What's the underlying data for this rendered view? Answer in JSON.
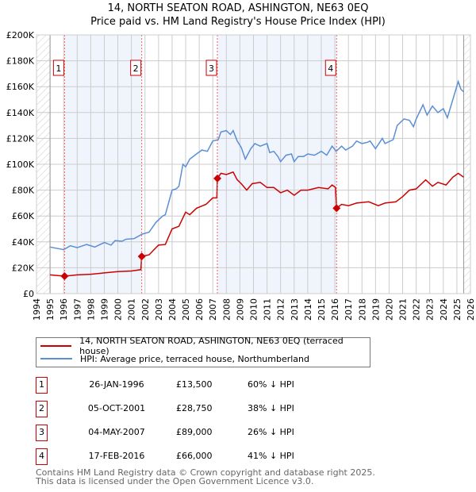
{
  "title": "14, NORTH SEATON ROAD, ASHINGTON, NE63 0EQ",
  "subtitle": "Price paid vs. HM Land Registry's House Price Index (HPI)",
  "chart_data": {
    "type": "line",
    "title": "14, NORTH SEATON ROAD, ASHINGTON, NE63 0EQ — Price paid vs. HM Land Registry's House Price Index (HPI)",
    "xlabel": "",
    "ylabel": "",
    "xlim": [
      1994,
      2026
    ],
    "ylim": [
      0,
      200000
    ],
    "x_ticks": [
      "1994",
      "1995",
      "1996",
      "1997",
      "1998",
      "1999",
      "2000",
      "2001",
      "2002",
      "2003",
      "2004",
      "2005",
      "2006",
      "2007",
      "2008",
      "2009",
      "2010",
      "2011",
      "2012",
      "2013",
      "2014",
      "2015",
      "2016",
      "2017",
      "2018",
      "2019",
      "2020",
      "2021",
      "2022",
      "2023",
      "2024",
      "2025",
      "2026"
    ],
    "y_ticks": [
      "£0",
      "£20K",
      "£40K",
      "£60K",
      "£80K",
      "£100K",
      "£120K",
      "£140K",
      "£160K",
      "£180K",
      "£200K"
    ],
    "grid": true,
    "legend_placement": "below",
    "series": [
      {
        "name": "14, NORTH SEATON ROAD, ASHINGTON, NE63 0EQ (terraced house)",
        "color": "#cc0000",
        "x": [
          1995,
          1996.07,
          1997,
          1998,
          1999,
          2000,
          2001,
          2001.7,
          2001.76,
          2002.3,
          2003,
          2003.5,
          2004,
          2004.5,
          2005,
          2005.3,
          2005.8,
          2006.5,
          2007,
          2007.3,
          2007.34,
          2007.6,
          2008,
          2008.5,
          2008.8,
          2009.1,
          2009.5,
          2009.9,
          2010.5,
          2011,
          2011.5,
          2012,
          2012.5,
          2013,
          2013.5,
          2014,
          2014.8,
          2015.5,
          2015.8,
          2016.05,
          2016.13,
          2016.5,
          2017,
          2017.6,
          2018.5,
          2019.2,
          2019.7,
          2020.5,
          2021,
          2021.5,
          2022,
          2022.7,
          2023.2,
          2023.6,
          2024.2,
          2024.7,
          2025.1,
          2025.5
        ],
        "y": [
          14500,
          13500,
          14500,
          15000,
          16000,
          17000,
          17500,
          18500,
          28750,
          30000,
          37500,
          38000,
          50000,
          52000,
          63000,
          61000,
          66000,
          69000,
          74000,
          74000,
          89000,
          93000,
          92000,
          94000,
          88000,
          85000,
          80000,
          85000,
          86000,
          82000,
          82000,
          78000,
          80000,
          76000,
          80000,
          80000,
          82000,
          81000,
          84000,
          82000,
          66000,
          69000,
          68000,
          70000,
          71000,
          68000,
          70000,
          71000,
          75000,
          80000,
          81000,
          88000,
          83000,
          86000,
          84000,
          90000,
          93000,
          90000
        ]
      },
      {
        "name": "HPI: Average price, terraced house, Northumberland",
        "color": "#5b8fd4",
        "x": [
          1995,
          1996,
          1996.5,
          1997,
          1997.7,
          1998.3,
          1999,
          1999.5,
          1999.8,
          2000.3,
          2000.6,
          2001.2,
          2001.8,
          2002.3,
          2002.8,
          2003.3,
          2003.5,
          2004,
          2004.3,
          2004.5,
          2004.8,
          2005,
          2005.3,
          2005.8,
          2006.2,
          2006.6,
          2007,
          2007.4,
          2007.6,
          2008,
          2008.3,
          2008.5,
          2008.8,
          2009.1,
          2009.4,
          2009.8,
          2010.1,
          2010.5,
          2011,
          2011.2,
          2011.5,
          2011.8,
          2012,
          2012.4,
          2012.8,
          2013,
          2013.3,
          2013.7,
          2014,
          2014.5,
          2015,
          2015.4,
          2015.8,
          2016.1,
          2016.5,
          2016.8,
          2017.3,
          2017.6,
          2018,
          2018.4,
          2018.6,
          2019,
          2019.5,
          2019.7,
          2020.3,
          2020.6,
          2021.1,
          2021.5,
          2021.8,
          2022,
          2022.5,
          2022.8,
          2023.2,
          2023.6,
          2024,
          2024.3,
          2024.7,
          2025.1,
          2025.3,
          2025.5
        ],
        "y": [
          36000,
          34000,
          37000,
          35500,
          38000,
          36000,
          39500,
          37500,
          41000,
          40500,
          42000,
          42500,
          46000,
          47500,
          55000,
          60000,
          61000,
          80000,
          81000,
          83000,
          100000,
          98000,
          104000,
          108000,
          111000,
          110000,
          118000,
          119000,
          125000,
          126000,
          123000,
          126000,
          118000,
          113000,
          104000,
          112000,
          116000,
          114000,
          116000,
          109000,
          110000,
          106000,
          102000,
          107000,
          108000,
          102000,
          106000,
          106000,
          108000,
          107000,
          110000,
          107000,
          114000,
          110000,
          114000,
          111000,
          114000,
          118000,
          116000,
          117000,
          118000,
          112000,
          120000,
          116000,
          119000,
          130000,
          135000,
          134000,
          129000,
          135000,
          146000,
          138000,
          145000,
          140000,
          143000,
          136000,
          150000,
          164000,
          158000,
          156000
        ]
      }
    ],
    "sales": [
      {
        "label": "1",
        "x": 1996.07,
        "y": 13500
      },
      {
        "label": "2",
        "x": 2001.76,
        "y": 28750
      },
      {
        "label": "3",
        "x": 2007.34,
        "y": 89000
      },
      {
        "label": "4",
        "x": 2016.13,
        "y": 66000
      }
    ]
  },
  "legend": {
    "red_label": "14, NORTH SEATON ROAD, ASHINGTON, NE63 0EQ (terraced house)",
    "blue_label": "HPI: Average price, terraced house, Northumberland"
  },
  "transactions": [
    {
      "num": "1",
      "date": "26-JAN-1996",
      "price": "£13,500",
      "hpi": "60% ↓ HPI"
    },
    {
      "num": "2",
      "date": "05-OCT-2001",
      "price": "£28,750",
      "hpi": "38% ↓ HPI"
    },
    {
      "num": "3",
      "date": "04-MAY-2007",
      "price": "£89,000",
      "hpi": "26% ↓ HPI"
    },
    {
      "num": "4",
      "date": "17-FEB-2016",
      "price": "£66,000",
      "hpi": "41% ↓ HPI"
    }
  ],
  "footer": {
    "line1": "Contains HM Land Registry data © Crown copyright and database right 2025.",
    "line2": "This data is licensed under the Open Government Licence v3.0."
  }
}
